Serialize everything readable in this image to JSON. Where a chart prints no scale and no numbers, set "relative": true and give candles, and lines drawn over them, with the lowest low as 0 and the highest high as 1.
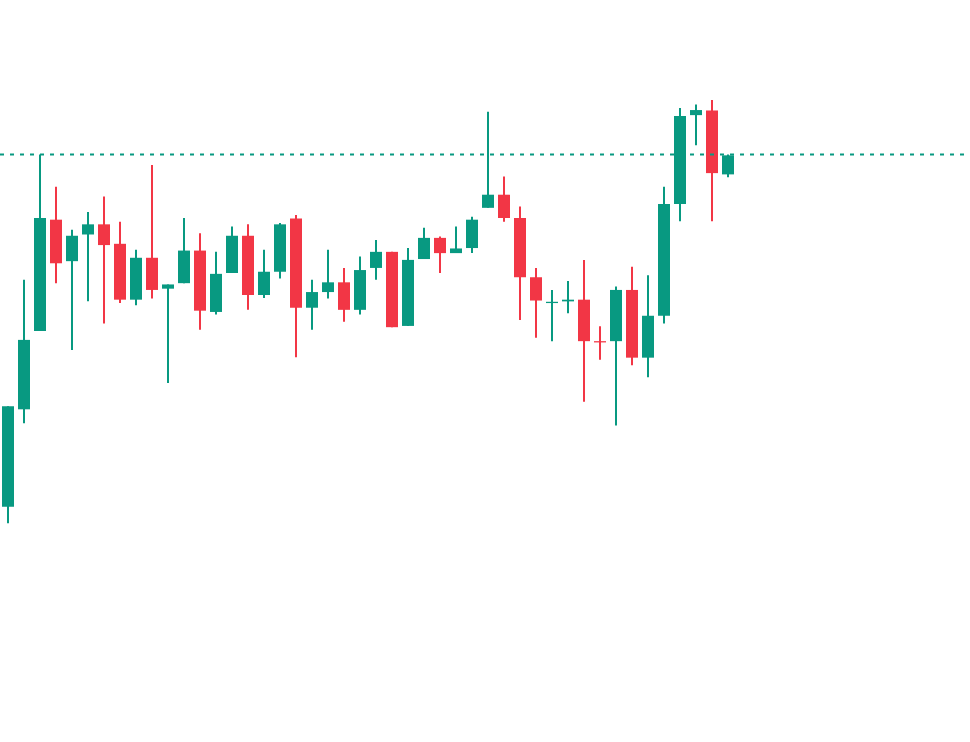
{
  "chart_data": {
    "type": "candlestick",
    "relative": true,
    "categories": [
      null,
      null,
      null,
      null,
      null,
      null,
      null,
      null,
      null,
      null,
      null,
      null,
      null,
      null,
      null,
      null,
      null,
      null,
      null,
      null,
      null,
      null,
      null,
      null,
      null,
      null,
      null,
      null,
      null,
      null,
      null,
      null,
      null,
      null,
      null,
      null,
      null,
      null,
      null,
      null,
      null,
      null,
      null,
      null,
      null,
      null
    ],
    "ohlc": [
      [
        0.039,
        0.276,
        0,
        0.276
      ],
      [
        0.269,
        0.575,
        0.236,
        0.433
      ],
      [
        0.454,
        0.871,
        0.454,
        0.721
      ],
      [
        0.717,
        0.795,
        0.567,
        0.614
      ],
      [
        0.619,
        0.693,
        0.409,
        0.679
      ],
      [
        0.682,
        0.735,
        0.524,
        0.706
      ],
      [
        0.706,
        0.772,
        0.472,
        0.657
      ],
      [
        0.66,
        0.712,
        0.52,
        0.528
      ],
      [
        0.528,
        0.646,
        0.515,
        0.627
      ],
      [
        0.627,
        0.846,
        0.531,
        0.551
      ],
      [
        0.554,
        0.564,
        0.331,
        0.564
      ],
      [
        0.567,
        0.721,
        0.567,
        0.644
      ],
      [
        0.644,
        0.685,
        0.457,
        0.502
      ],
      [
        0.499,
        0.641,
        0.493,
        0.589
      ],
      [
        0.591,
        0.701,
        0.591,
        0.679
      ],
      [
        0.679,
        0.706,
        0.504,
        0.539
      ],
      [
        0.539,
        0.646,
        0.532,
        0.594
      ],
      [
        0.594,
        0.709,
        0.578,
        0.706
      ],
      [
        0.72,
        0.728,
        0.392,
        0.509
      ],
      [
        0.509,
        0.575,
        0.457,
        0.546
      ],
      [
        0.546,
        0.646,
        0.531,
        0.569
      ],
      [
        0.569,
        0.603,
        0.476,
        0.504
      ],
      [
        0.504,
        0.63,
        0.493,
        0.598
      ],
      [
        0.603,
        0.669,
        0.575,
        0.641
      ],
      [
        0.641,
        0.641,
        0.463,
        0.463
      ],
      [
        0.466,
        0.65,
        0.466,
        0.622
      ],
      [
        0.624,
        0.698,
        0.624,
        0.674
      ],
      [
        0.674,
        0.677,
        0.591,
        0.638
      ],
      [
        0.638,
        0.701,
        0.638,
        0.649
      ],
      [
        0.65,
        0.724,
        0.638,
        0.717
      ],
      [
        0.745,
        0.972,
        0.745,
        0.776
      ],
      [
        0.776,
        0.819,
        0.712,
        0.721
      ],
      [
        0.721,
        0.748,
        0.48,
        0.581
      ],
      [
        0.581,
        0.603,
        0.438,
        0.526
      ],
      [
        0.52,
        0.551,
        0.43,
        0.523
      ],
      [
        0.524,
        0.572,
        0.496,
        0.528
      ],
      [
        0.528,
        0.622,
        0.287,
        0.43
      ],
      [
        0.43,
        0.465,
        0.386,
        0.427
      ],
      [
        0.43,
        0.559,
        0.231,
        0.551
      ],
      [
        0.551,
        0.606,
        0.373,
        0.391
      ],
      [
        0.391,
        0.586,
        0.345,
        0.49
      ],
      [
        0.49,
        0.795,
        0.472,
        0.754
      ],
      [
        0.754,
        0.981,
        0.713,
        0.962
      ],
      [
        0.964,
        0.989,
        0.893,
        0.976
      ],
      [
        0.975,
        1,
        0.713,
        0.827
      ],
      [
        0.824,
        0.871,
        0.817,
        0.869
      ]
    ],
    "colors": [
      "#089981",
      "#089981",
      "#089981",
      "#f23645",
      "#089981",
      "#089981",
      "#f23645",
      "#f23645",
      "#089981",
      "#f23645",
      "#089981",
      "#089981",
      "#f23645",
      "#089981",
      "#089981",
      "#f23645",
      "#089981",
      "#089981",
      "#f23645",
      "#089981",
      "#089981",
      "#f23645",
      "#089981",
      "#089981",
      "#f23645",
      "#089981",
      "#089981",
      "#f23645",
      "#089981",
      "#089981",
      "#089981",
      "#f23645",
      "#f23645",
      "#f23645",
      "#089981",
      "#089981",
      "#f23645",
      "#f23645",
      "#089981",
      "#f23645",
      "#089981",
      "#089981",
      "#089981",
      "#089981",
      "#f23645",
      "#089981"
    ],
    "ref_lines": [
      {
        "axis": "y",
        "value": 0.871,
        "color": "#089981",
        "line_style": "dotted"
      }
    ]
  }
}
